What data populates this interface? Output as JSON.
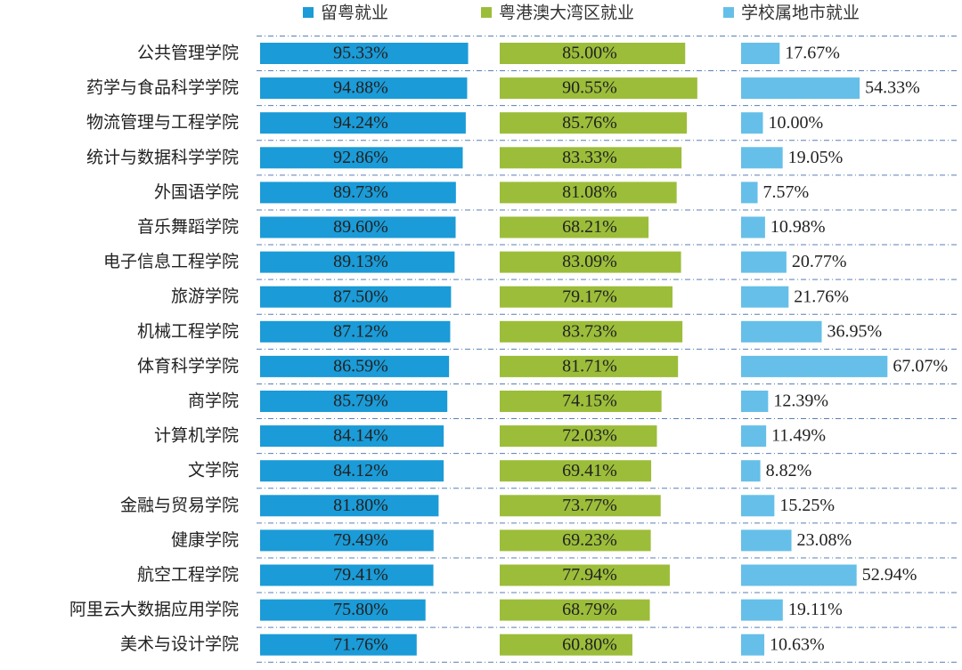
{
  "chart_data": {
    "type": "bar",
    "orientation": "horizontal",
    "categories": [
      "公共管理学院",
      "药学与食品科学学院",
      "物流管理与工程学院",
      "统计与数据科学学院",
      "外国语学院",
      "音乐舞蹈学院",
      "电子信息工程学院",
      "旅游学院",
      "机械工程学院",
      "体育科学学院",
      "商学院",
      "计算机学院",
      "文学院",
      "金融与贸易学院",
      "健康学院",
      "航空工程学院",
      "阿里云大数据应用学院",
      "美术与设计学院"
    ],
    "series": [
      {
        "name": "留粤就业",
        "color": "#1b9bd7",
        "values": [
          95.33,
          94.88,
          94.24,
          92.86,
          89.73,
          89.6,
          89.13,
          87.5,
          87.12,
          86.59,
          85.79,
          84.14,
          84.12,
          81.8,
          79.49,
          79.41,
          75.8,
          71.76
        ],
        "value_labels": [
          "95.33%",
          "94.88%",
          "94.24%",
          "92.86%",
          "89.73%",
          "89.60%",
          "89.13%",
          "87.50%",
          "87.12%",
          "86.59%",
          "85.79%",
          "84.14%",
          "84.12%",
          "81.80%",
          "79.49%",
          "79.41%",
          "75.80%",
          "71.76%"
        ]
      },
      {
        "name": "粤港澳大湾区就业",
        "color": "#9cbd3a",
        "values": [
          85.0,
          90.55,
          85.76,
          83.33,
          81.08,
          68.21,
          83.09,
          79.17,
          83.73,
          81.71,
          74.15,
          72.03,
          69.41,
          73.77,
          69.23,
          77.94,
          68.79,
          60.8
        ],
        "value_labels": [
          "85.00%",
          "90.55%",
          "85.76%",
          "83.33%",
          "81.08%",
          "68.21%",
          "83.09%",
          "79.17%",
          "83.73%",
          "81.71%",
          "74.15%",
          "72.03%",
          "69.41%",
          "73.77%",
          "69.23%",
          "77.94%",
          "68.79%",
          "60.80%"
        ]
      },
      {
        "name": "学校属地市就业",
        "color": "#66bfe8",
        "values": [
          17.67,
          54.33,
          10.0,
          19.05,
          7.57,
          10.98,
          20.77,
          21.76,
          36.95,
          67.07,
          12.39,
          11.49,
          8.82,
          15.25,
          23.08,
          52.94,
          19.11,
          10.63
        ],
        "value_labels": [
          "17.67%",
          "54.33%",
          "10.00%",
          "19.05%",
          "7.57%",
          "10.98%",
          "20.77%",
          "21.76%",
          "36.95%",
          "67.07%",
          "12.39%",
          "11.49%",
          "8.82%",
          "15.25%",
          "23.08%",
          "52.94%",
          "19.11%",
          "10.63%"
        ]
      }
    ]
  }
}
